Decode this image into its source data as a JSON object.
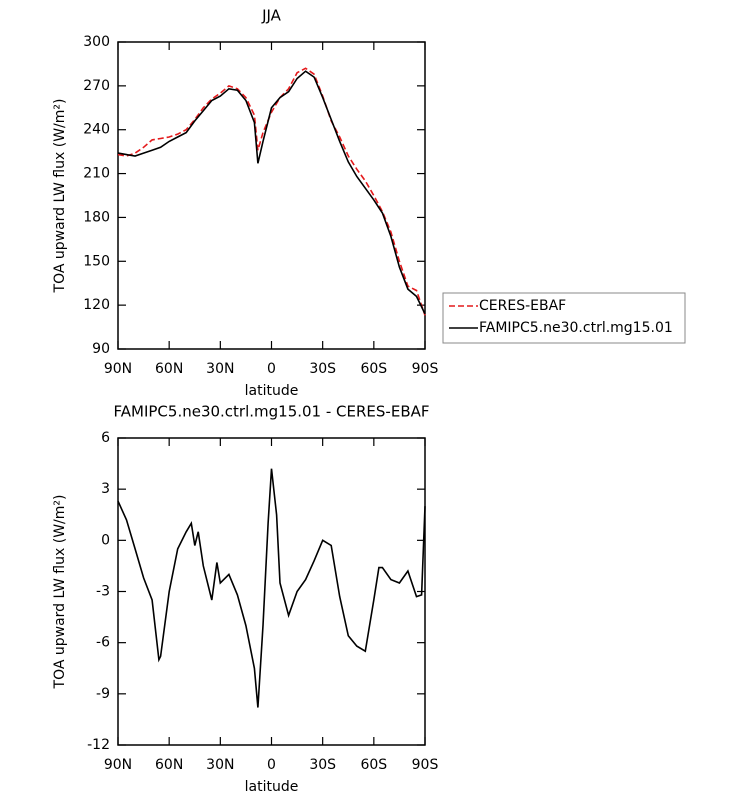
{
  "chart_data": [
    {
      "type": "line",
      "title": "JJA",
      "x_label": "latitude",
      "y_label": "TOA upward LW flux (W/m²)",
      "x": [
        90,
        85,
        80,
        75,
        70,
        65,
        60,
        55,
        50,
        45,
        40,
        35,
        30,
        25,
        20,
        15,
        10,
        8,
        5,
        0,
        -5,
        -10,
        -15,
        -20,
        -25,
        -30,
        -35,
        -40,
        -45,
        -50,
        -55,
        -60,
        -65,
        -70,
        -75,
        -80,
        -85,
        -90
      ],
      "series": [
        {
          "name": "CERES-EBAF",
          "color": "#e41a1c",
          "dash": true,
          "values": [
            223,
            222,
            224,
            228,
            233,
            234,
            235,
            237,
            240,
            247,
            255,
            261,
            265,
            270,
            268,
            262,
            250,
            226,
            238,
            252,
            262,
            268,
            279,
            282,
            278,
            263,
            246,
            235,
            222,
            213,
            205,
            195,
            184,
            170,
            150,
            133,
            130,
            113
          ]
        },
        {
          "name": "FAMIPC5.ne30.ctrl.mg15.01",
          "color": "#000000",
          "dash": false,
          "values": [
            224,
            223,
            222,
            224,
            226,
            228,
            232,
            235,
            238,
            246,
            253,
            260,
            263,
            268,
            267,
            260,
            245,
            217,
            232,
            255,
            262,
            266,
            275,
            280,
            276,
            262,
            247,
            232,
            218,
            208,
            200,
            192,
            183,
            167,
            146,
            131,
            126,
            114
          ]
        }
      ],
      "xlim": [
        90,
        -90
      ],
      "xticks": [
        {
          "value": 90,
          "label": "90N"
        },
        {
          "value": 60,
          "label": "60N"
        },
        {
          "value": 30,
          "label": "30N"
        },
        0,
        {
          "value": -30,
          "label": "30S"
        },
        {
          "value": -60,
          "label": "60S"
        },
        {
          "value": -90,
          "label": "90S"
        }
      ],
      "ylim": [
        90,
        300
      ],
      "yticks": [
        90,
        120,
        150,
        180,
        210,
        240,
        270,
        300
      ],
      "legend": "right"
    },
    {
      "type": "line",
      "title": "FAMIPC5.ne30.ctrl.mg15.01 - CERES-EBAF",
      "x_label": "latitude",
      "y_label": "TOA upward LW flux (W/m²)",
      "x": [
        90,
        85,
        80,
        75,
        70,
        66,
        65,
        60,
        55,
        50,
        47,
        45,
        43,
        40,
        35,
        32,
        30,
        25,
        20,
        15,
        10,
        8,
        5,
        2,
        0,
        -3,
        -5,
        -10,
        -15,
        -20,
        -25,
        -30,
        -35,
        -40,
        -45,
        -50,
        -55,
        -60,
        -63,
        -65,
        -70,
        -75,
        -80,
        -85,
        -88,
        -90
      ],
      "values": [
        2.3,
        1.2,
        -0.5,
        -2.2,
        -3.5,
        -7.0,
        -6.8,
        -3.0,
        -0.5,
        0.5,
        1.0,
        -0.3,
        0.5,
        -1.5,
        -3.5,
        -1.3,
        -2.5,
        -2.0,
        -3.2,
        -5.0,
        -7.5,
        -9.8,
        -5.0,
        1.0,
        4.2,
        1.5,
        -2.5,
        -4.4,
        -3.0,
        -2.3,
        -1.2,
        0.0,
        -0.3,
        -3.3,
        -5.6,
        -6.2,
        -6.5,
        -3.5,
        -1.6,
        -1.6,
        -2.3,
        -2.5,
        -1.8,
        -3.3,
        -3.2,
        2.0
      ],
      "color": "#000000",
      "xlim": [
        90,
        -90
      ],
      "xticks": [
        {
          "value": 90,
          "label": "90N"
        },
        {
          "value": 60,
          "label": "60N"
        },
        {
          "value": 30,
          "label": "30N"
        },
        0,
        {
          "value": -30,
          "label": "30S"
        },
        {
          "value": -60,
          "label": "60S"
        },
        {
          "value": -90,
          "label": "90S"
        }
      ],
      "ylim": [
        -12,
        6
      ],
      "yticks": [
        -12,
        -9,
        -6,
        -3,
        0,
        3,
        6
      ]
    }
  ]
}
